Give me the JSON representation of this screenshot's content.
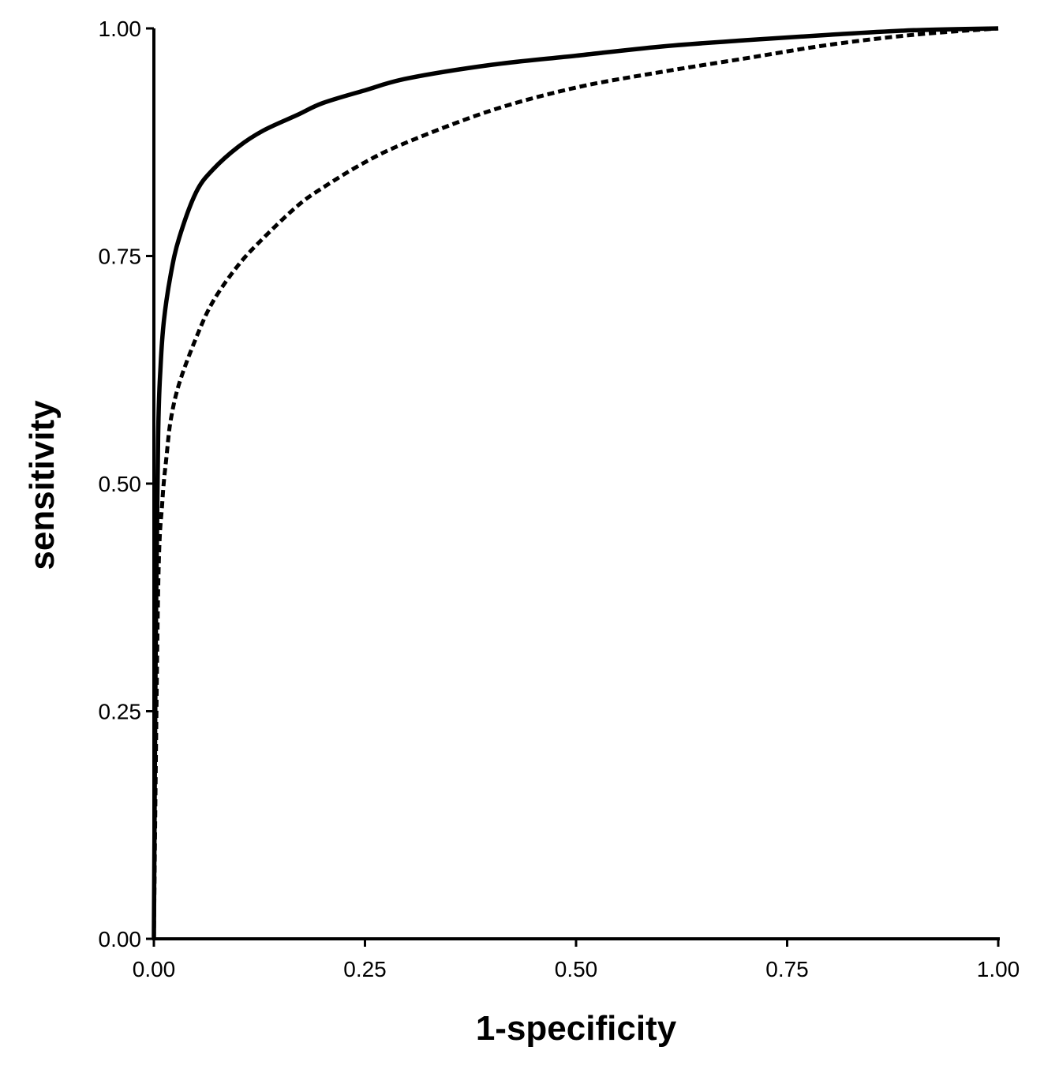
{
  "chart_data": {
    "type": "line",
    "title": "",
    "xlabel": "1-specificity",
    "ylabel": "sensitivity",
    "xlim": [
      0,
      1
    ],
    "ylim": [
      0,
      1
    ],
    "x_ticks": [
      "0.00",
      "0.25",
      "0.50",
      "0.75",
      "1.00"
    ],
    "y_ticks": [
      "0.00",
      "0.25",
      "0.50",
      "0.75",
      "1.00"
    ],
    "grid": false,
    "legend": "none",
    "series": [
      {
        "style": "solid",
        "color": "#000000",
        "x": [
          0.0,
          0.002,
          0.005,
          0.008,
          0.012,
          0.02,
          0.03,
          0.05,
          0.07,
          0.1,
          0.13,
          0.17,
          0.2,
          0.25,
          0.3,
          0.4,
          0.5,
          0.6,
          0.7,
          0.8,
          0.9,
          1.0
        ],
        "y": [
          0.0,
          0.3,
          0.55,
          0.63,
          0.68,
          0.73,
          0.77,
          0.82,
          0.845,
          0.87,
          0.888,
          0.905,
          0.918,
          0.932,
          0.945,
          0.96,
          0.97,
          0.98,
          0.987,
          0.993,
          0.998,
          1.0
        ]
      },
      {
        "style": "dashed",
        "color": "#000000",
        "x": [
          0.0,
          0.005,
          0.01,
          0.015,
          0.02,
          0.03,
          0.05,
          0.07,
          0.1,
          0.13,
          0.17,
          0.2,
          0.25,
          0.3,
          0.4,
          0.5,
          0.6,
          0.7,
          0.8,
          0.9,
          1.0
        ],
        "y": [
          0.0,
          0.38,
          0.48,
          0.53,
          0.57,
          0.61,
          0.66,
          0.7,
          0.74,
          0.77,
          0.805,
          0.825,
          0.853,
          0.875,
          0.91,
          0.935,
          0.952,
          0.967,
          0.982,
          0.993,
          1.0
        ]
      }
    ]
  }
}
